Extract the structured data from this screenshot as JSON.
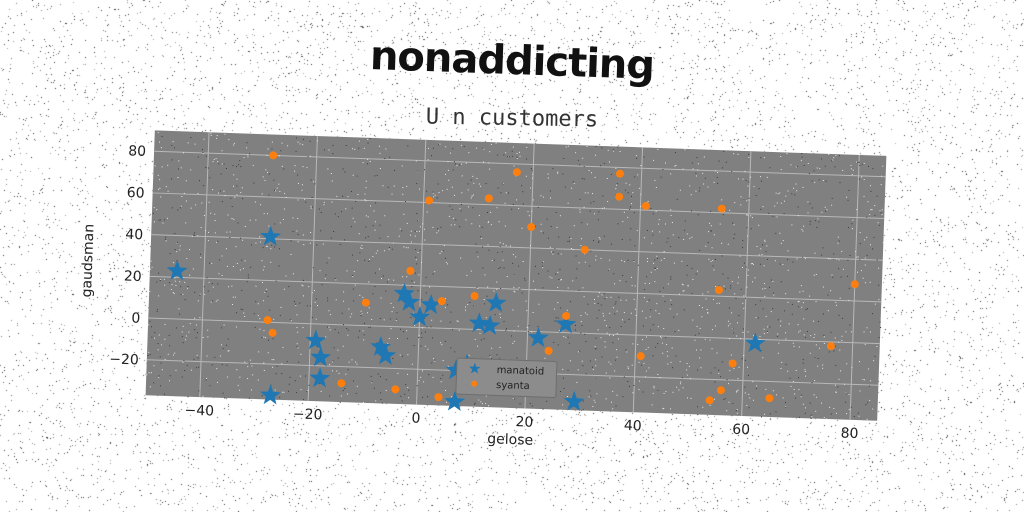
{
  "title": "nonaddicting",
  "subtitle": "U n customers",
  "colors": {
    "series1": "#1f77b4",
    "series2": "#ff7f0e",
    "plot_bg": "#808080",
    "grid": "#b8b8b8"
  },
  "chart_data": {
    "type": "scatter",
    "xlabel": "gelose",
    "ylabel": "gaudsman",
    "xlim": [
      -50,
      85
    ],
    "ylim": [
      -37,
      90
    ],
    "xticks": [
      -40,
      -20,
      0,
      20,
      40,
      60,
      80
    ],
    "yticks": [
      -20,
      0,
      20,
      40,
      60,
      80
    ],
    "grid": true,
    "legend_position": "lower-center",
    "series": [
      {
        "name": "manatoid",
        "marker": "star",
        "color": "#1f77b4",
        "points": [
          [
            -45,
            23
          ],
          [
            -28,
            41
          ],
          [
            -27,
            -35
          ],
          [
            -19,
            -8
          ],
          [
            -18,
            -16
          ],
          [
            -18,
            -26
          ],
          [
            -7,
            -10
          ],
          [
            -6,
            -14
          ],
          [
            -3,
            16
          ],
          [
            -2,
            12
          ],
          [
            0,
            5
          ],
          [
            2,
            11
          ],
          [
            7,
            -20
          ],
          [
            9,
            -17
          ],
          [
            7,
            -35
          ],
          [
            11,
            3
          ],
          [
            13,
            2
          ],
          [
            14,
            13
          ],
          [
            15,
            -18
          ],
          [
            22,
            -3
          ],
          [
            27,
            4
          ],
          [
            29,
            -33
          ],
          [
            62,
            -2
          ]
        ]
      },
      {
        "name": "syanta",
        "marker": "circle",
        "color": "#ff7f0e",
        "points": [
          [
            -28,
            80
          ],
          [
            -28,
            1
          ],
          [
            -27,
            -5
          ],
          [
            -14,
            -28
          ],
          [
            -10,
            11
          ],
          [
            -4,
            -30
          ],
          [
            -2,
            27
          ],
          [
            1,
            61
          ],
          [
            4,
            13
          ],
          [
            4,
            -33
          ],
          [
            10,
            16
          ],
          [
            12,
            63
          ],
          [
            17,
            76
          ],
          [
            20,
            50
          ],
          [
            24,
            -9
          ],
          [
            27,
            8
          ],
          [
            30,
            40
          ],
          [
            36,
            77
          ],
          [
            36,
            66
          ],
          [
            41,
            62
          ],
          [
            41,
            -10
          ],
          [
            54,
            -30
          ],
          [
            55,
            23
          ],
          [
            55,
            62
          ],
          [
            56,
            -25
          ],
          [
            58,
            -12
          ],
          [
            65,
            -28
          ],
          [
            76,
            -2
          ],
          [
            80,
            28
          ]
        ]
      }
    ]
  }
}
